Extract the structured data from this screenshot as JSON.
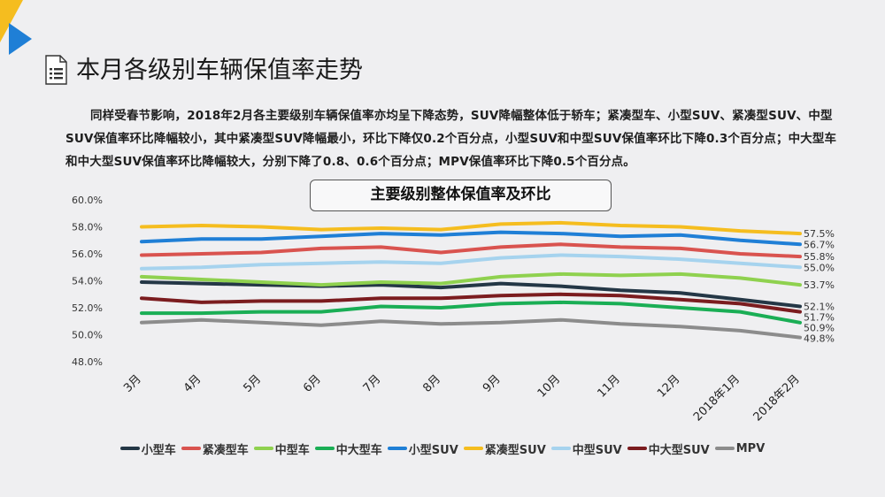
{
  "header": {
    "title": "本月各级别车辆保值率走势",
    "paragraph": "同样受春节影响，2018年2月各主要级别车辆保值率亦均呈下降态势，SUV降幅整体低于轿车；紧凑型车、小型SUV、紧凑型SUV、中型SUV保值率环比降幅较小，其中紧凑型SUV降幅最小，环比下降仅0.2个百分点，小型SUV和中型SUV保值率环比下降0.3个百分点；中大型车和中大型SUV保值率环比降幅较大，分别下降了0.8、0.6个百分点；MPV保值率环比下降0.5个百分点。"
  },
  "chart_data": {
    "type": "line",
    "title": "主要级别整体保值率及环比",
    "categories": [
      "3月",
      "4月",
      "5月",
      "6月",
      "7月",
      "8月",
      "9月",
      "10月",
      "11月",
      "12月",
      "2018年1月",
      "2018年2月"
    ],
    "y_ticks": [
      "60.0%",
      "58.0%",
      "56.0%",
      "54.0%",
      "52.0%",
      "50.0%",
      "48.0%"
    ],
    "ylim": [
      48,
      60
    ],
    "series": [
      {
        "name": "小型车",
        "color": "#243746",
        "values": [
          53.9,
          53.8,
          53.7,
          53.6,
          53.7,
          53.5,
          53.8,
          53.6,
          53.3,
          53.1,
          52.6,
          52.1
        ],
        "end_label": "52.1%"
      },
      {
        "name": "紧凑型车",
        "color": "#d9534f",
        "values": [
          55.9,
          56.0,
          56.1,
          56.4,
          56.5,
          56.1,
          56.5,
          56.7,
          56.5,
          56.4,
          56.0,
          55.8
        ],
        "end_label": "55.8%"
      },
      {
        "name": "中型车",
        "color": "#8fd14f",
        "values": [
          54.3,
          54.1,
          53.9,
          53.7,
          53.9,
          53.8,
          54.3,
          54.5,
          54.4,
          54.5,
          54.2,
          53.7
        ],
        "end_label": "53.7%"
      },
      {
        "name": "中大型车",
        "color": "#1aae55",
        "values": [
          51.6,
          51.6,
          51.7,
          51.7,
          52.1,
          52.0,
          52.3,
          52.4,
          52.3,
          52.0,
          51.7,
          50.9
        ],
        "end_label": "50.9%"
      },
      {
        "name": "小型SUV",
        "color": "#1f7fd6",
        "values": [
          56.9,
          57.1,
          57.1,
          57.3,
          57.5,
          57.4,
          57.6,
          57.5,
          57.3,
          57.4,
          57.0,
          56.7
        ],
        "end_label": "56.7%"
      },
      {
        "name": "紧凑型SUV",
        "color": "#f5bd1f",
        "values": [
          58.0,
          58.1,
          58.0,
          57.8,
          57.9,
          57.8,
          58.2,
          58.3,
          58.1,
          58.0,
          57.7,
          57.5
        ],
        "end_label": "57.5%"
      },
      {
        "name": "中型SUV",
        "color": "#a6d3ee",
        "values": [
          54.9,
          55.0,
          55.2,
          55.3,
          55.4,
          55.3,
          55.7,
          55.9,
          55.8,
          55.6,
          55.3,
          55.0
        ],
        "end_label": "55.0%"
      },
      {
        "name": "中大型SUV",
        "color": "#7b1c1f",
        "values": [
          52.7,
          52.4,
          52.5,
          52.5,
          52.7,
          52.7,
          52.9,
          53.0,
          52.9,
          52.6,
          52.3,
          51.7
        ],
        "end_label": "51.7%"
      },
      {
        "name": "MPV",
        "color": "#8c8c8c",
        "values": [
          50.9,
          51.1,
          50.9,
          50.7,
          51.0,
          50.8,
          50.9,
          51.1,
          50.8,
          50.6,
          50.3,
          49.8
        ],
        "end_label": "49.8%"
      }
    ]
  }
}
